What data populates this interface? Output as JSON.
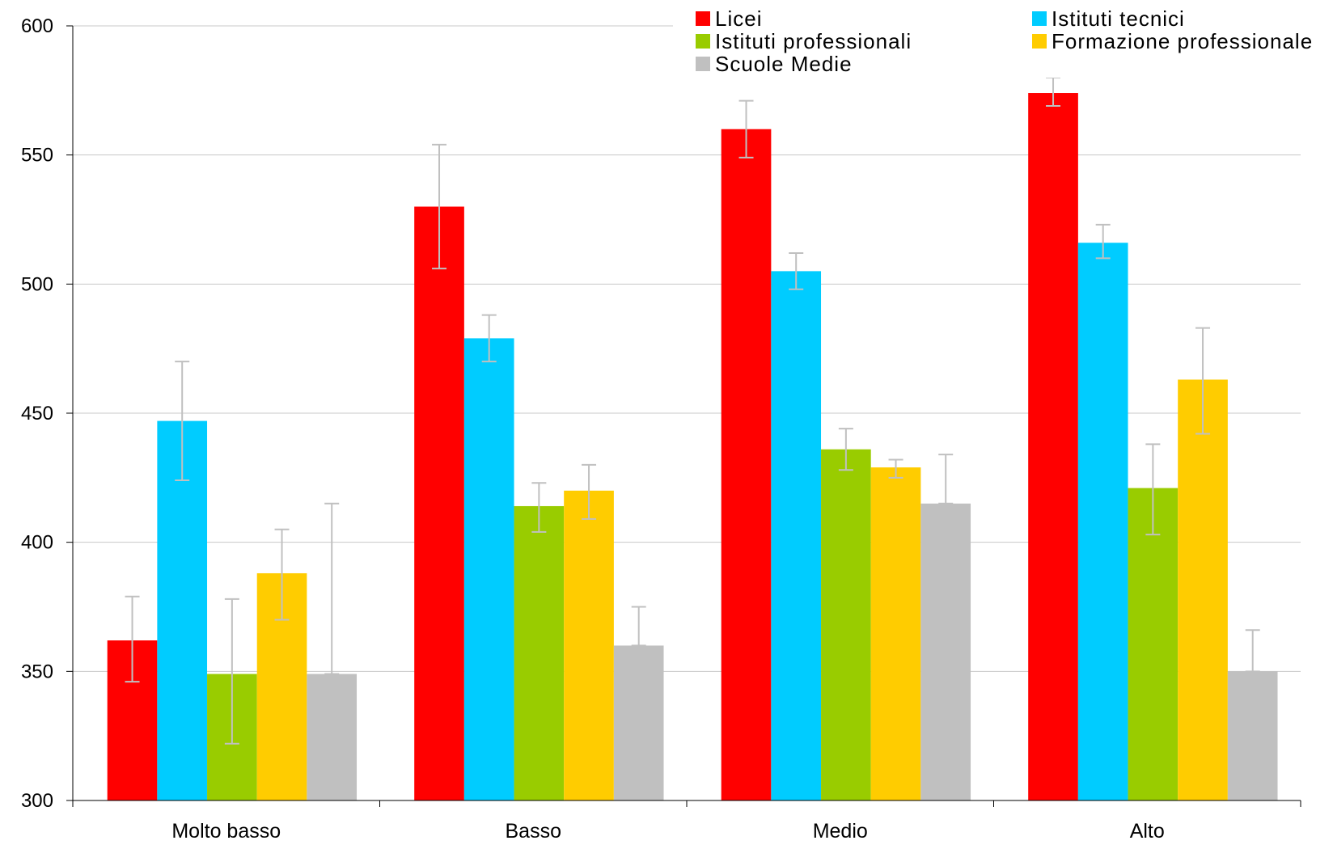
{
  "chart_data": {
    "type": "bar",
    "categories": [
      "Molto basso",
      "Basso",
      "Medio",
      "Alto"
    ],
    "series": [
      {
        "name": "Licei",
        "color": "#ff0000",
        "values": [
          362,
          530,
          560,
          574
        ],
        "err_low": [
          346,
          506,
          549,
          569
        ],
        "err_high": [
          379,
          554,
          571,
          580
        ]
      },
      {
        "name": "Istituti tecnici",
        "color": "#00ccff",
        "values": [
          447,
          479,
          505,
          516
        ],
        "err_low": [
          424,
          470,
          498,
          510
        ],
        "err_high": [
          470,
          488,
          512,
          523
        ]
      },
      {
        "name": "Istituti professionali",
        "color": "#99cc00",
        "values": [
          349,
          414,
          436,
          421
        ],
        "err_low": [
          322,
          404,
          428,
          403
        ],
        "err_high": [
          378,
          423,
          444,
          438
        ]
      },
      {
        "name": "Formazione professionale",
        "color": "#ffcc00",
        "values": [
          388,
          420,
          429,
          463
        ],
        "err_low": [
          370,
          409,
          425,
          442
        ],
        "err_high": [
          405,
          430,
          432,
          483
        ]
      },
      {
        "name": "Scuole Medie",
        "color": "#c0c0c0",
        "values": [
          349,
          360,
          415,
          350
        ],
        "err_low": [
          349,
          360,
          415,
          350
        ],
        "err_high": [
          415,
          375,
          434,
          366
        ]
      }
    ],
    "ylim": [
      300,
      600
    ],
    "yticks": [
      "300",
      "350",
      "400",
      "450",
      "500",
      "550",
      "600"
    ],
    "grid": true,
    "legend": "top-right",
    "error_bar_color": "#c0c0c0"
  }
}
